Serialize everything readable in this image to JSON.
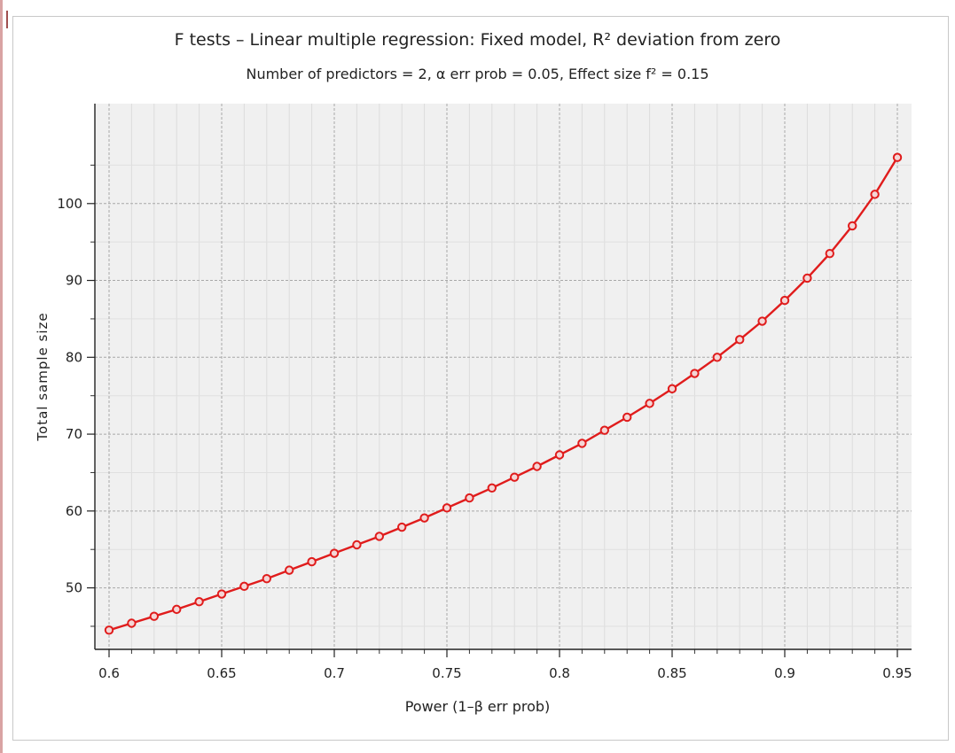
{
  "chart_data": {
    "type": "line",
    "title": "F tests – Linear multiple regression: Fixed model, R² deviation from zero",
    "subtitle": "Number of predictors = 2, α err prob = 0.05, Effect size f² = 0.15",
    "xlabel": "Power (1–β err prob)",
    "ylabel": "Total sample size",
    "xlim": [
      0.6,
      0.95
    ],
    "ylim": [
      42,
      113
    ],
    "x_ticks": [
      0.6,
      0.65,
      0.7,
      0.75,
      0.8,
      0.85,
      0.9,
      0.95
    ],
    "x_tick_labels": [
      "0.6",
      "0.65",
      "0.7",
      "0.75",
      "0.8",
      "0.85",
      "0.9",
      "0.95"
    ],
    "y_ticks": [
      50,
      60,
      70,
      80,
      90,
      100
    ],
    "y_tick_labels": [
      "50",
      "60",
      "70",
      "80",
      "90",
      "100"
    ],
    "grid": true,
    "series": [
      {
        "color": "#e01c1c",
        "x": [
          0.6,
          0.61,
          0.62,
          0.63,
          0.64,
          0.65,
          0.66,
          0.67,
          0.68,
          0.69,
          0.7,
          0.71,
          0.72,
          0.73,
          0.74,
          0.75,
          0.76,
          0.77,
          0.78,
          0.79,
          0.8,
          0.81,
          0.82,
          0.83,
          0.84,
          0.85,
          0.86,
          0.87,
          0.88,
          0.89,
          0.9,
          0.91,
          0.92,
          0.93,
          0.94,
          0.95
        ],
        "y": [
          44.5,
          45.4,
          46.3,
          47.2,
          48.2,
          49.2,
          50.2,
          51.2,
          52.3,
          53.4,
          54.5,
          55.6,
          56.7,
          57.9,
          59.1,
          60.4,
          61.7,
          63.0,
          64.4,
          65.8,
          67.3,
          68.8,
          70.5,
          72.2,
          74.0,
          75.9,
          77.9,
          80.0,
          82.3,
          84.7,
          87.4,
          90.3,
          93.5,
          97.1,
          101.2,
          106.0
        ]
      }
    ]
  }
}
